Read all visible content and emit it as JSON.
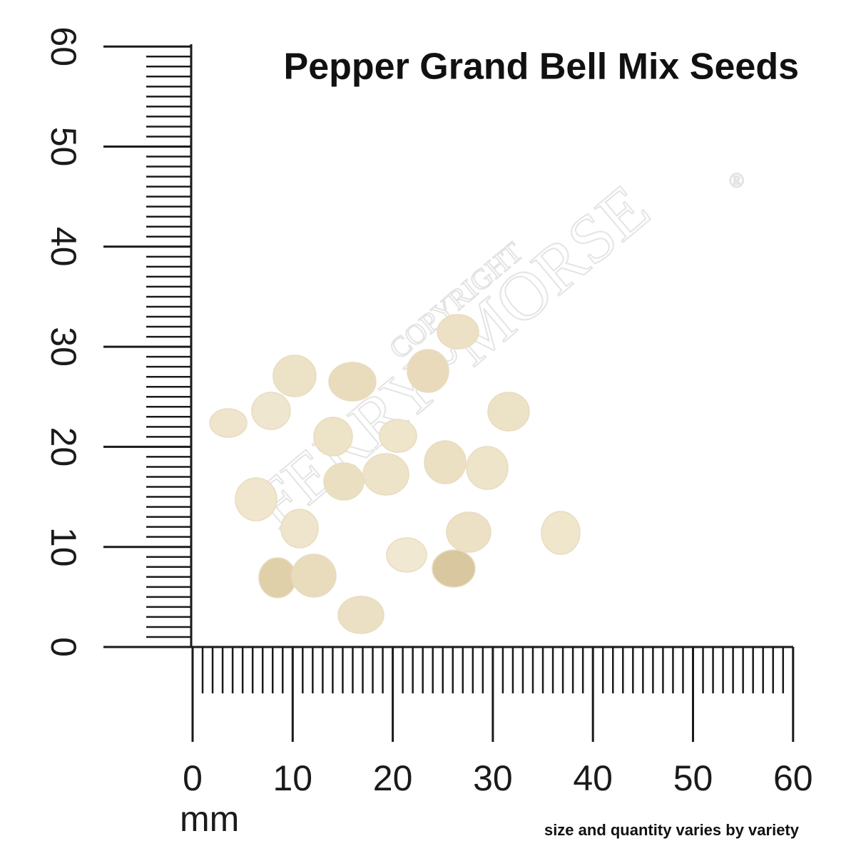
{
  "title": "Pepper Grand Bell Mix Seeds",
  "vertical_ruler": {
    "labels": [
      "0",
      "10",
      "20",
      "30",
      "40",
      "50",
      "60"
    ]
  },
  "horizontal_ruler": {
    "labels": [
      "0",
      "10",
      "20",
      "30",
      "40",
      "50",
      "60"
    ],
    "unit": "mm"
  },
  "footnote": "size and quantity varies by variety",
  "watermark": {
    "top": "COPYRIGHT",
    "brand": "FERRY~MORSE",
    "mark": "®"
  }
}
